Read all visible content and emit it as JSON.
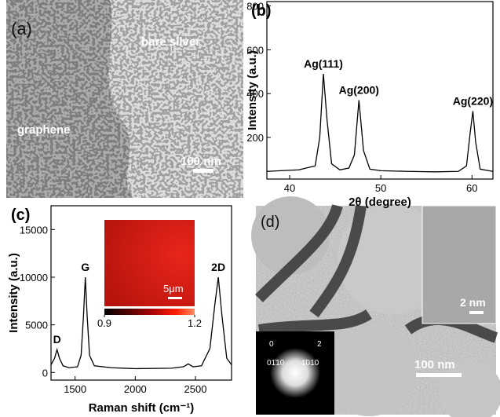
{
  "panel_a": {
    "label": "(a)",
    "texts": [
      "bare silver",
      "graphene"
    ],
    "scale_bar": "100 nm"
  },
  "chart_data": [
    {
      "type": "line",
      "panel_label": "(b)",
      "xlabel": "2θ (degree)",
      "ylabel": "Intensity (a.u.)",
      "x": [
        37.5,
        39,
        41,
        42.8,
        43.3,
        43.7,
        44.1,
        44.6,
        45.5,
        46.5,
        47.1,
        47.6,
        48.1,
        48.8,
        50,
        53,
        56,
        58.5,
        59.4,
        59.8,
        60.1,
        60.4,
        60.9,
        62.3
      ],
      "series": [
        {
          "color": "#000000",
          "values": [
            45,
            48,
            52,
            70,
            200,
            490,
            280,
            80,
            52,
            60,
            120,
            370,
            140,
            55,
            48,
            45,
            43,
            45,
            70,
            220,
            320,
            180,
            55,
            45
          ]
        }
      ],
      "xlim": [
        37.5,
        62.3
      ],
      "ylim": [
        10,
        820
      ],
      "xticks": [
        40,
        50,
        60
      ],
      "yticks": [
        200,
        400,
        600,
        800
      ],
      "annotations": [
        {
          "text": "Ag(111)",
          "x": 43.7
        },
        {
          "text": "Ag(200)",
          "x": 47.6
        },
        {
          "text": "Ag(220)",
          "x": 60.1
        }
      ]
    },
    {
      "type": "line",
      "panel_label": "(c)",
      "xlabel": "Raman shift (cm⁻¹)",
      "ylabel": "Intensity (a.u.)",
      "x": [
        1300,
        1330,
        1350,
        1370,
        1400,
        1450,
        1520,
        1550,
        1570,
        1585,
        1600,
        1620,
        1660,
        1800,
        2000,
        2300,
        2400,
        2440,
        2480,
        2550,
        2620,
        2660,
        2690,
        2720,
        2760,
        2800
      ],
      "series": [
        {
          "color": "#000000",
          "values": [
            800,
            1500,
            2400,
            1500,
            700,
            500,
            600,
            1800,
            6000,
            10000,
            6000,
            1800,
            700,
            500,
            400,
            450,
            600,
            900,
            600,
            700,
            2500,
            7000,
            10000,
            6000,
            1500,
            800
          ]
        }
      ],
      "xlim": [
        1300,
        2800
      ],
      "ylim": [
        -800,
        17500
      ],
      "xticks": [
        1500,
        2000,
        2500
      ],
      "yticks": [
        0,
        5000,
        10000,
        15000
      ],
      "annotations": [
        {
          "text": "D",
          "x": 1350
        },
        {
          "text": "G",
          "x": 1585
        },
        {
          "text": "2D",
          "x": 2690
        }
      ],
      "inset": {
        "scale_bar": "5μm",
        "colorbar_lim": [
          0.9,
          1.2
        ]
      }
    }
  ],
  "panel_d": {
    "label": "(d)",
    "scale_bar": "100 nm",
    "inset_scale_bar": "2 nm",
    "diffraction_labels": [
      "0",
      "2",
      "01̄10",
      "1̄010"
    ]
  }
}
